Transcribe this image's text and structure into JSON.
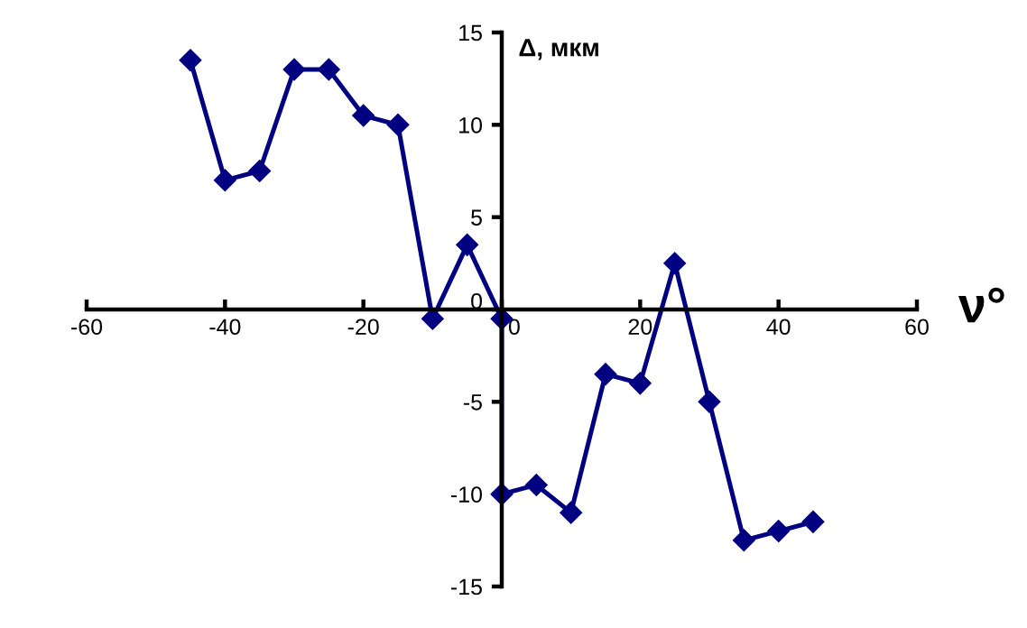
{
  "chart_data": {
    "type": "line",
    "xlabel": "ν°",
    "ylabel": "Δ, мкм",
    "x": [
      -45,
      -40,
      -35,
      -30,
      -25,
      -20,
      -15,
      -10,
      -5,
      0,
      0,
      5,
      10,
      15,
      20,
      25,
      30,
      35,
      40,
      45
    ],
    "series": [
      {
        "color": "#000080",
        "values": [
          13.5,
          7,
          7.5,
          13,
          13,
          10.5,
          10,
          -0.5,
          3.5,
          -0.5,
          -10,
          -9.5,
          -11,
          -3.5,
          -4,
          2.5,
          -5,
          -12.5,
          -12,
          -11.5
        ]
      }
    ],
    "xlim": [
      -60,
      60
    ],
    "xticks": [
      -60,
      -40,
      -20,
      0,
      20,
      40,
      60
    ],
    "ylim": [
      -15,
      15
    ],
    "yticks": [
      -15,
      -10,
      -5,
      0,
      5,
      10,
      15
    ],
    "grid": false,
    "legend": false,
    "marker": "diamond",
    "line_style": "solid"
  }
}
